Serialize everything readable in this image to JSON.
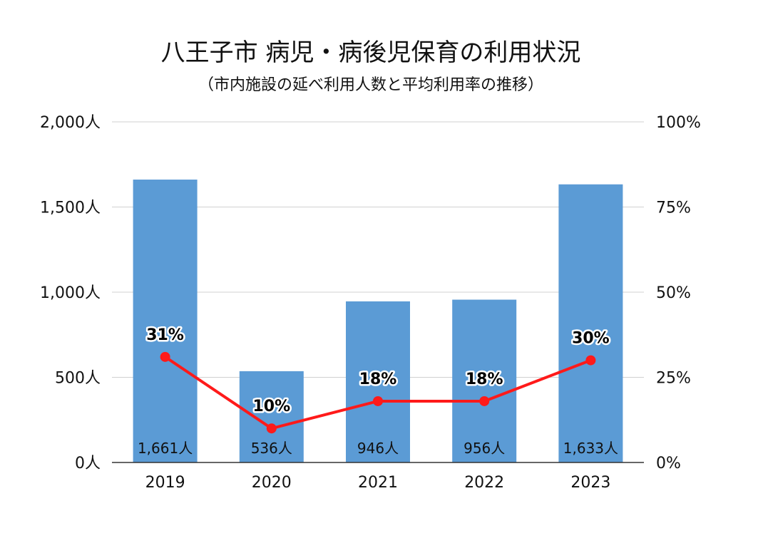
{
  "chart_data": {
    "type": "bar",
    "title": "八王子市 病児・病後児保育の利用状況",
    "subtitle": "（市内施設の延べ利用人数と平均利用率の推移）",
    "categories": [
      "2019",
      "2020",
      "2021",
      "2022",
      "2023"
    ],
    "series": [
      {
        "type": "bar",
        "axis": "left",
        "color": "#5b9bd5",
        "values": [
          1661,
          536,
          946,
          956,
          1633
        ],
        "labels": [
          "1,661人",
          "536人",
          "946人",
          "956人",
          "1,633人"
        ]
      },
      {
        "type": "line",
        "axis": "right",
        "color": "#ff1a1a",
        "values": [
          31,
          10,
          18,
          18,
          30
        ],
        "labels": [
          "31%",
          "10%",
          "18%",
          "18%",
          "30%"
        ]
      }
    ],
    "y_left": {
      "ylim": [
        0,
        2000
      ],
      "ticks": [
        0,
        500,
        1000,
        1500,
        2000
      ],
      "tick_labels": [
        "0人",
        "500人",
        "1,000人",
        "1,500人",
        "2,000人"
      ]
    },
    "y_right": {
      "ylim": [
        0,
        100
      ],
      "ticks": [
        0,
        25,
        50,
        75,
        100
      ],
      "tick_labels": [
        "0%",
        "25%",
        "50%",
        "75%",
        "100%"
      ]
    },
    "grid": true,
    "legend": "none"
  }
}
